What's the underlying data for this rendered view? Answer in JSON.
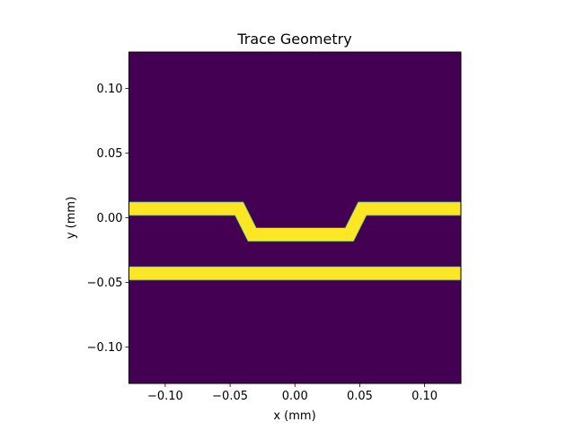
{
  "chart_data": {
    "type": "heatmap",
    "title": "Trace Geometry",
    "xlabel": "x (mm)",
    "ylabel": "y (mm)",
    "xlim": [
      -0.128,
      0.128
    ],
    "ylim": [
      -0.128,
      0.128
    ],
    "xticks": [
      -0.1,
      -0.05,
      0.0,
      0.05,
      0.1
    ],
    "xtick_labels": [
      "−0.10",
      "−0.05",
      "0.00",
      "0.05",
      "0.10"
    ],
    "yticks": [
      0.1,
      0.05,
      0.0,
      -0.05,
      -0.1
    ],
    "ytick_labels": [
      "0.10",
      "0.05",
      "0.00",
      "−0.05",
      "−0.10"
    ],
    "grid": false,
    "colors": {
      "background": "#440154",
      "trace": "#fde725",
      "edge": "#21918c"
    },
    "traces": [
      {
        "kind": "jogged",
        "width": 0.01,
        "points": [
          [
            -0.128,
            0.007
          ],
          [
            -0.043,
            0.007
          ],
          [
            -0.033,
            -0.013
          ],
          [
            0.042,
            -0.013
          ],
          [
            0.052,
            0.007
          ],
          [
            0.128,
            0.007
          ]
        ]
      },
      {
        "kind": "straight",
        "width": 0.01,
        "points": [
          [
            -0.128,
            -0.043
          ],
          [
            0.128,
            -0.043
          ]
        ]
      }
    ]
  }
}
